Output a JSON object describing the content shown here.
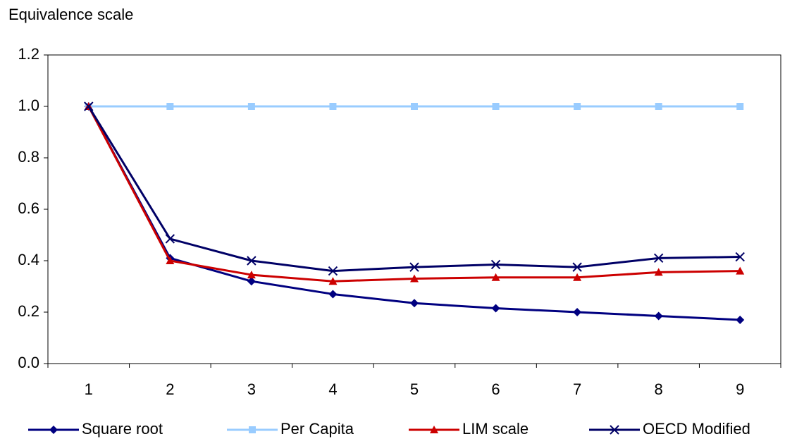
{
  "chart_data": {
    "type": "line",
    "y_axis_title": "Equivalence scale",
    "categories": [
      "1",
      "2",
      "3",
      "4",
      "5",
      "6",
      "7",
      "8",
      "9"
    ],
    "series": [
      {
        "name": "Square root",
        "color": "#000080",
        "marker": "diamond",
        "values": [
          1.0,
          0.41,
          0.32,
          0.27,
          0.235,
          0.215,
          0.2,
          0.185,
          0.17
        ]
      },
      {
        "name": "Per Capita",
        "color": "#99ccff",
        "marker": "square",
        "values": [
          1.0,
          1.0,
          1.0,
          1.0,
          1.0,
          1.0,
          1.0,
          1.0,
          1.0
        ]
      },
      {
        "name": "LIM scale",
        "color": "#cc0000",
        "marker": "triangle",
        "values": [
          1.0,
          0.4,
          0.345,
          0.32,
          0.33,
          0.335,
          0.335,
          0.355,
          0.36
        ]
      },
      {
        "name": "OECD Modified",
        "color": "#000066",
        "marker": "x",
        "values": [
          1.0,
          0.485,
          0.4,
          0.36,
          0.375,
          0.385,
          0.375,
          0.41,
          0.415
        ]
      }
    ],
    "ylim": [
      0,
      1.2
    ],
    "yticks": [
      {
        "value": 0,
        "label": "0.0"
      },
      0.2,
      0.4,
      0.6,
      0.8,
      {
        "value": 1,
        "label": "1.0"
      },
      1.2
    ],
    "grid": false,
    "legend": "bottom"
  }
}
